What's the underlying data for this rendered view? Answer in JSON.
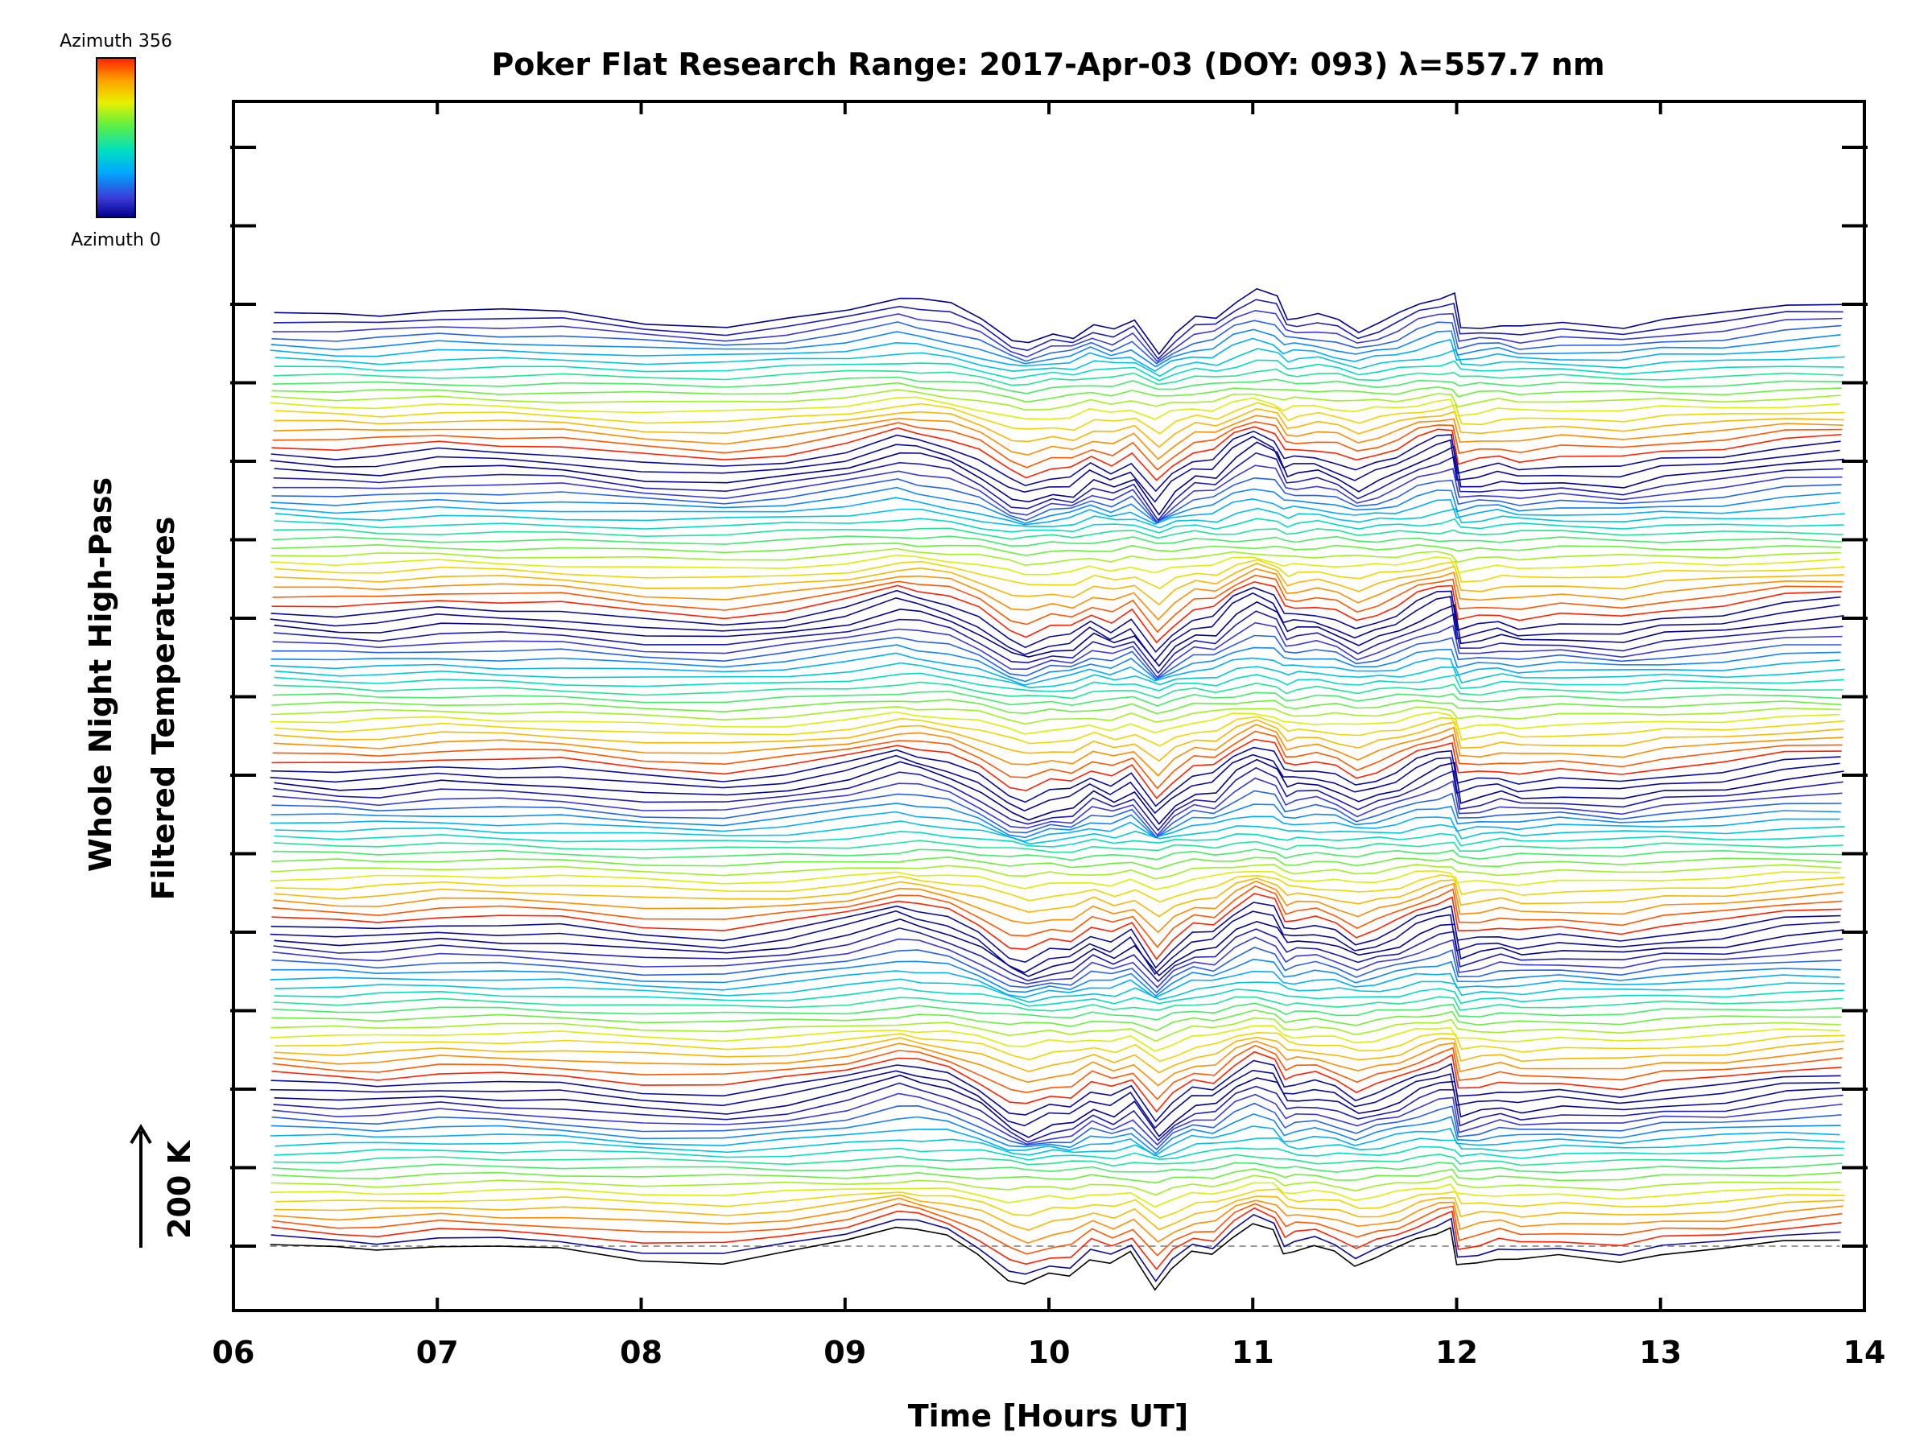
{
  "chart_data": {
    "type": "line",
    "title": "Poker Flat Research Range: 2017-Apr-03 (DOY: 093) λ=557.7 nm",
    "xlabel": "Time [Hours UT]",
    "ylabel_line1": "Whole Night High-Pass",
    "ylabel_line2": "Filtered Temperatures",
    "xlim": [
      6,
      14
    ],
    "x_ticks": [
      "06",
      "07",
      "08",
      "09",
      "10",
      "11",
      "12",
      "13",
      "14"
    ],
    "scale_bar": {
      "label": "200 K",
      "value_k": 200
    },
    "colorbar": {
      "top_label": "Azimuth 356",
      "bottom_label": "Azimuth 0",
      "min": 0,
      "max": 356
    },
    "n_stacked_series": 120,
    "series_spacing_k": 20,
    "grid": false,
    "baseline_dashed": true,
    "representative_profile": {
      "time_hours": [
        6.18,
        6.5,
        6.7,
        7.0,
        7.3,
        7.6,
        8.0,
        8.4,
        8.7,
        9.0,
        9.25,
        9.35,
        9.5,
        9.65,
        9.8,
        9.88,
        10.0,
        10.1,
        10.2,
        10.3,
        10.4,
        10.52,
        10.6,
        10.7,
        10.8,
        10.9,
        11.0,
        11.1,
        11.15,
        11.2,
        11.3,
        11.4,
        11.5,
        11.6,
        11.7,
        11.8,
        11.9,
        11.97,
        12.0,
        12.1,
        12.2,
        12.3,
        12.5,
        12.8,
        13.0,
        13.3,
        13.6,
        13.88
      ],
      "temperature_k": [
        0,
        -10,
        -10,
        5,
        0,
        -5,
        -30,
        -40,
        -20,
        10,
        50,
        40,
        20,
        -20,
        -80,
        -95,
        -70,
        -70,
        -30,
        -50,
        -20,
        -110,
        -60,
        -20,
        -20,
        30,
        60,
        40,
        -15,
        -10,
        -5,
        -20,
        -50,
        -30,
        -10,
        20,
        40,
        50,
        -50,
        -40,
        -30,
        -40,
        -30,
        -40,
        -20,
        -10,
        15,
        25
      ]
    }
  }
}
